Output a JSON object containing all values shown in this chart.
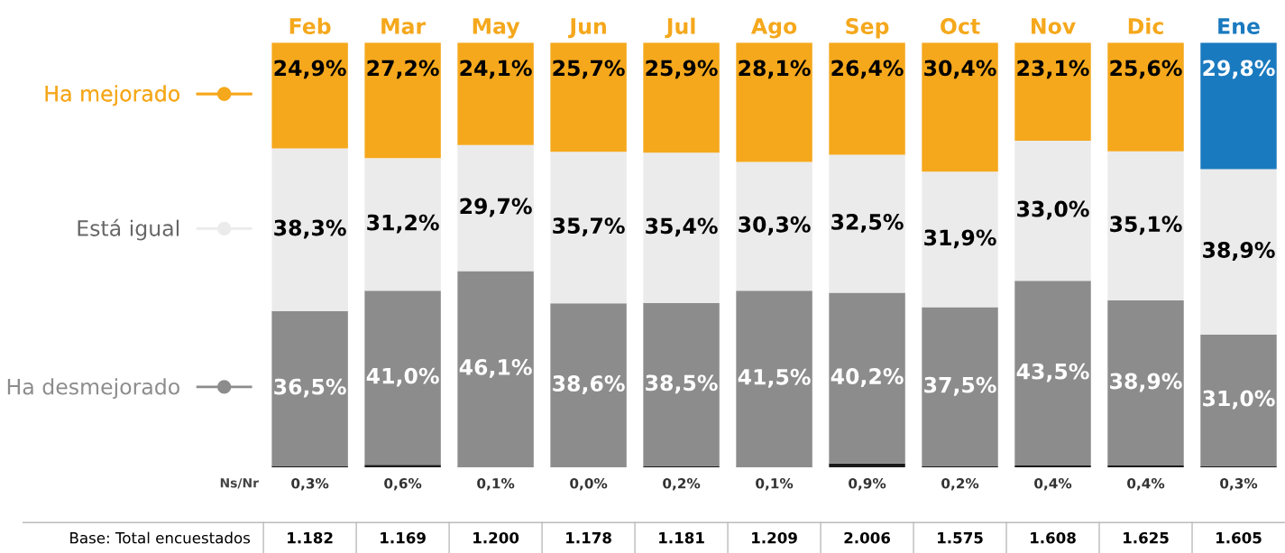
{
  "chart_data": {
    "type": "bar",
    "stacked": true,
    "categories": [
      "Feb",
      "Mar",
      "May",
      "Jun",
      "Jul",
      "Ago",
      "Sep",
      "Oct",
      "Nov",
      "Dic",
      "Ene"
    ],
    "series": [
      {
        "name": "Ns/Nr",
        "color": "#1a1a1a",
        "values": [
          0.3,
          0.6,
          0.1,
          0.0,
          0.2,
          0.1,
          0.9,
          0.2,
          0.4,
          0.4,
          0.3
        ],
        "value_labels": [
          "0,3%",
          "0,6%",
          "0,1%",
          "0,0%",
          "0,2%",
          "0,1%",
          "0,9%",
          "0,2%",
          "0,4%",
          "0,4%",
          "0,3%"
        ]
      },
      {
        "name": "Ha desmejorado",
        "color": "#8c8c8c",
        "values": [
          36.5,
          41.0,
          46.1,
          38.6,
          38.5,
          41.5,
          40.2,
          37.5,
          43.5,
          38.9,
          31.0
        ],
        "value_labels": [
          "36,5%",
          "41,0%",
          "46,1%",
          "38,6%",
          "38,5%",
          "41,5%",
          "40,2%",
          "37,5%",
          "43,5%",
          "38,9%",
          "31,0%"
        ]
      },
      {
        "name": "Está igual",
        "color": "#ebebeb",
        "values": [
          38.3,
          31.2,
          29.7,
          35.7,
          35.4,
          30.3,
          32.5,
          31.9,
          33.0,
          35.1,
          38.9
        ],
        "value_labels": [
          "38,3%",
          "31,2%",
          "29,7%",
          "35,7%",
          "35,4%",
          "30,3%",
          "32,5%",
          "31,9%",
          "33,0%",
          "35,1%",
          "38,9%"
        ]
      },
      {
        "name": "Ha mejorado",
        "color": "#f5a81c",
        "colors": [
          "#f5a81c",
          "#f5a81c",
          "#f5a81c",
          "#f5a81c",
          "#f5a81c",
          "#f5a81c",
          "#f5a81c",
          "#f5a81c",
          "#f5a81c",
          "#f5a81c",
          "#1a7abf"
        ],
        "values": [
          24.9,
          27.2,
          24.1,
          25.7,
          25.9,
          28.1,
          26.4,
          30.4,
          23.1,
          25.6,
          29.8
        ],
        "value_labels": [
          "24,9%",
          "27,2%",
          "24,1%",
          "25,7%",
          "25,9%",
          "28,1%",
          "26,4%",
          "30,4%",
          "23,1%",
          "25,6%",
          "29,8%"
        ]
      }
    ],
    "ylim": [
      0,
      100
    ],
    "legend": "left",
    "annotations": [
      "Base: Total encuestados",
      "1.182",
      "1.169",
      "1.200",
      "1.178",
      "1.181",
      "1.209",
      "2.006",
      "1.575",
      "1.608",
      "1.625",
      "1.605"
    ]
  }
}
